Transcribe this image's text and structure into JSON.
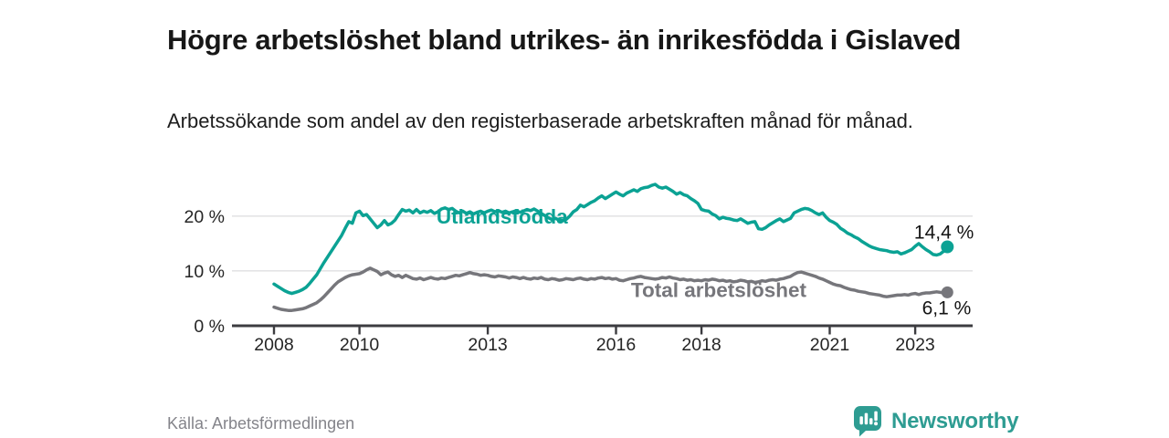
{
  "page": {
    "title": "Högre arbetslöshet bland utrikes- än inrikesfödda i Gislaved",
    "subtitle": "Arbetssökande som andel av den registerbaserade arbetskraften månad för månad.",
    "source": "Källa: Arbetsförmedlingen",
    "brand": {
      "name": "Newsworthy",
      "color": "#2e9c92",
      "icon": "newsworthy-speech-bubble-bar-chart-icon"
    }
  },
  "chart_data": {
    "type": "line",
    "title": "Högre arbetslöshet bland utrikes- än inrikesfödda i Gislaved",
    "subtitle": "Arbetssökande som andel av den registerbaserade arbetskraften månad för månad.",
    "source": "Källa: Arbetsförmedlingen",
    "xlabel": "",
    "ylabel": "",
    "x_unit": "year (monthly data)",
    "y_unit": "%",
    "xlim": [
      2006.44,
      2024.3
    ],
    "ylim": [
      0,
      27.8
    ],
    "grid": "horizontal-light",
    "legend_position": "inline-labels",
    "colors": {
      "grid_line": "#dcdcde",
      "axis_line": "#3c3c40",
      "tick_text": "#252525",
      "value_label_text": "#141414"
    },
    "y_ticks": [
      {
        "value": 0,
        "label": "0 %"
      },
      {
        "value": 10,
        "label": "10 %"
      },
      {
        "value": 20,
        "label": "20 %"
      }
    ],
    "x_ticks": [
      {
        "value": 2008,
        "label": "2008"
      },
      {
        "value": 2010,
        "label": "2010"
      },
      {
        "value": 2013,
        "label": "2013"
      },
      {
        "value": 2016,
        "label": "2016"
      },
      {
        "value": 2018,
        "label": "2018"
      },
      {
        "value": 2021,
        "label": "2021"
      },
      {
        "value": 2023,
        "label": "2023"
      }
    ],
    "series": [
      {
        "name": "Utlandsfödda",
        "color": "#0ba294",
        "start_year": 2008,
        "interval_months": 1,
        "end_value": 14.4,
        "end_label": "14,4 %",
        "end_label_offset": [
          29,
          -9
        ],
        "label_at": {
          "x": 2011.8,
          "y": 20.0
        },
        "values": [
          7.6,
          7.2,
          6.8,
          6.4,
          6.1,
          5.9,
          6.1,
          6.3,
          6.6,
          7.0,
          7.7,
          8.5,
          9.3,
          10.4,
          11.5,
          12.5,
          13.5,
          14.5,
          15.5,
          16.5,
          17.8,
          19.0,
          18.7,
          20.6,
          20.9,
          20.1,
          20.3,
          19.5,
          18.7,
          17.9,
          18.4,
          19.2,
          18.4,
          18.7,
          19.3,
          20.3,
          21.2,
          20.9,
          21.1,
          20.6,
          21.2,
          20.6,
          20.9,
          20.7,
          21.0,
          20.5,
          20.8,
          21.3,
          21.5,
          21.2,
          21.4,
          20.9,
          20.6,
          20.9,
          20.5,
          20.8,
          20.4,
          20.7,
          20.9,
          20.6,
          20.9,
          21.1,
          20.8,
          21.0,
          20.7,
          20.9,
          20.6,
          20.8,
          21.0,
          20.7,
          20.9,
          21.2,
          21.0,
          21.3,
          20.9,
          20.5,
          20.1,
          19.7,
          19.4,
          19.6,
          19.3,
          19.2,
          19.4,
          20.0,
          20.8,
          21.2,
          22.0,
          21.7,
          22.1,
          22.5,
          22.8,
          23.3,
          23.7,
          23.2,
          23.6,
          24.0,
          24.4,
          24.0,
          23.7,
          24.2,
          24.5,
          24.8,
          24.5,
          25.0,
          25.2,
          25.3,
          25.6,
          25.8,
          25.3,
          25.1,
          25.3,
          24.9,
          24.5,
          24.0,
          24.3,
          23.9,
          23.7,
          23.2,
          22.8,
          22.3,
          21.2,
          21.0,
          20.9,
          20.4,
          20.1,
          19.5,
          19.8,
          19.6,
          19.5,
          19.3,
          19.2,
          19.5,
          19.1,
          18.7,
          18.9,
          19.0,
          17.7,
          17.6,
          17.9,
          18.4,
          18.8,
          19.2,
          19.5,
          19.0,
          19.3,
          19.6,
          20.6,
          20.9,
          21.2,
          21.4,
          21.3,
          21.0,
          20.6,
          20.3,
          20.6,
          19.8,
          19.2,
          18.9,
          18.5,
          17.8,
          17.4,
          16.9,
          16.6,
          16.2,
          15.9,
          15.4,
          15.0,
          14.6,
          14.3,
          14.1,
          13.9,
          13.8,
          13.7,
          13.5,
          13.4,
          13.5,
          13.1,
          13.3,
          13.6,
          13.9,
          14.5,
          15.0,
          14.4,
          13.9,
          13.5,
          13.0,
          12.9,
          13.1,
          13.6,
          14.4
        ]
      },
      {
        "name": "Total arbetslöshet",
        "color": "#76767b",
        "start_year": 2008,
        "interval_months": 1,
        "end_value": 6.1,
        "end_label": "6,1 %",
        "end_label_offset": [
          26,
          24
        ],
        "label_at": {
          "x": 2016.35,
          "y": 6.6
        },
        "values": [
          3.4,
          3.2,
          3.0,
          2.9,
          2.8,
          2.8,
          2.9,
          3.0,
          3.1,
          3.3,
          3.6,
          3.9,
          4.2,
          4.7,
          5.3,
          6.0,
          6.7,
          7.4,
          8.0,
          8.4,
          8.8,
          9.1,
          9.3,
          9.4,
          9.5,
          9.8,
          10.2,
          10.5,
          10.2,
          9.9,
          9.3,
          9.6,
          9.8,
          9.3,
          9.0,
          9.2,
          8.8,
          9.2,
          8.9,
          8.6,
          8.5,
          8.7,
          8.4,
          8.6,
          8.8,
          8.6,
          8.5,
          8.7,
          8.6,
          8.8,
          9.0,
          9.2,
          9.1,
          9.3,
          9.5,
          9.7,
          9.5,
          9.4,
          9.2,
          9.3,
          9.2,
          9.0,
          8.9,
          9.1,
          9.0,
          8.9,
          8.7,
          8.9,
          8.8,
          8.6,
          8.8,
          8.6,
          8.5,
          8.7,
          8.6,
          8.8,
          8.5,
          8.4,
          8.6,
          8.5,
          8.3,
          8.4,
          8.6,
          8.5,
          8.4,
          8.6,
          8.7,
          8.5,
          8.4,
          8.6,
          8.5,
          8.7,
          8.8,
          8.6,
          8.7,
          8.5,
          8.6,
          8.3,
          8.2,
          8.4,
          8.6,
          8.7,
          8.9,
          9.0,
          8.8,
          8.7,
          8.6,
          8.5,
          8.6,
          8.8,
          8.7,
          8.9,
          8.7,
          8.6,
          8.4,
          8.5,
          8.3,
          8.4,
          8.2,
          8.3,
          8.2,
          8.4,
          8.3,
          8.5,
          8.4,
          8.2,
          8.3,
          8.1,
          8.2,
          8.0,
          8.1,
          8.3,
          8.2,
          8.0,
          8.1,
          7.9,
          8.0,
          8.2,
          8.1,
          8.3,
          8.4,
          8.3,
          8.5,
          8.6,
          8.8,
          9.0,
          9.4,
          9.7,
          9.8,
          9.6,
          9.4,
          9.2,
          9.0,
          8.7,
          8.5,
          8.2,
          7.9,
          7.6,
          7.4,
          7.3,
          7.0,
          6.8,
          6.6,
          6.5,
          6.3,
          6.2,
          6.1,
          5.9,
          5.8,
          5.7,
          5.6,
          5.4,
          5.3,
          5.4,
          5.5,
          5.6,
          5.6,
          5.7,
          5.6,
          5.8,
          5.9,
          5.7,
          5.9,
          6.0,
          6.0,
          6.1,
          6.2,
          6.1,
          6.0,
          6.1
        ]
      }
    ]
  }
}
